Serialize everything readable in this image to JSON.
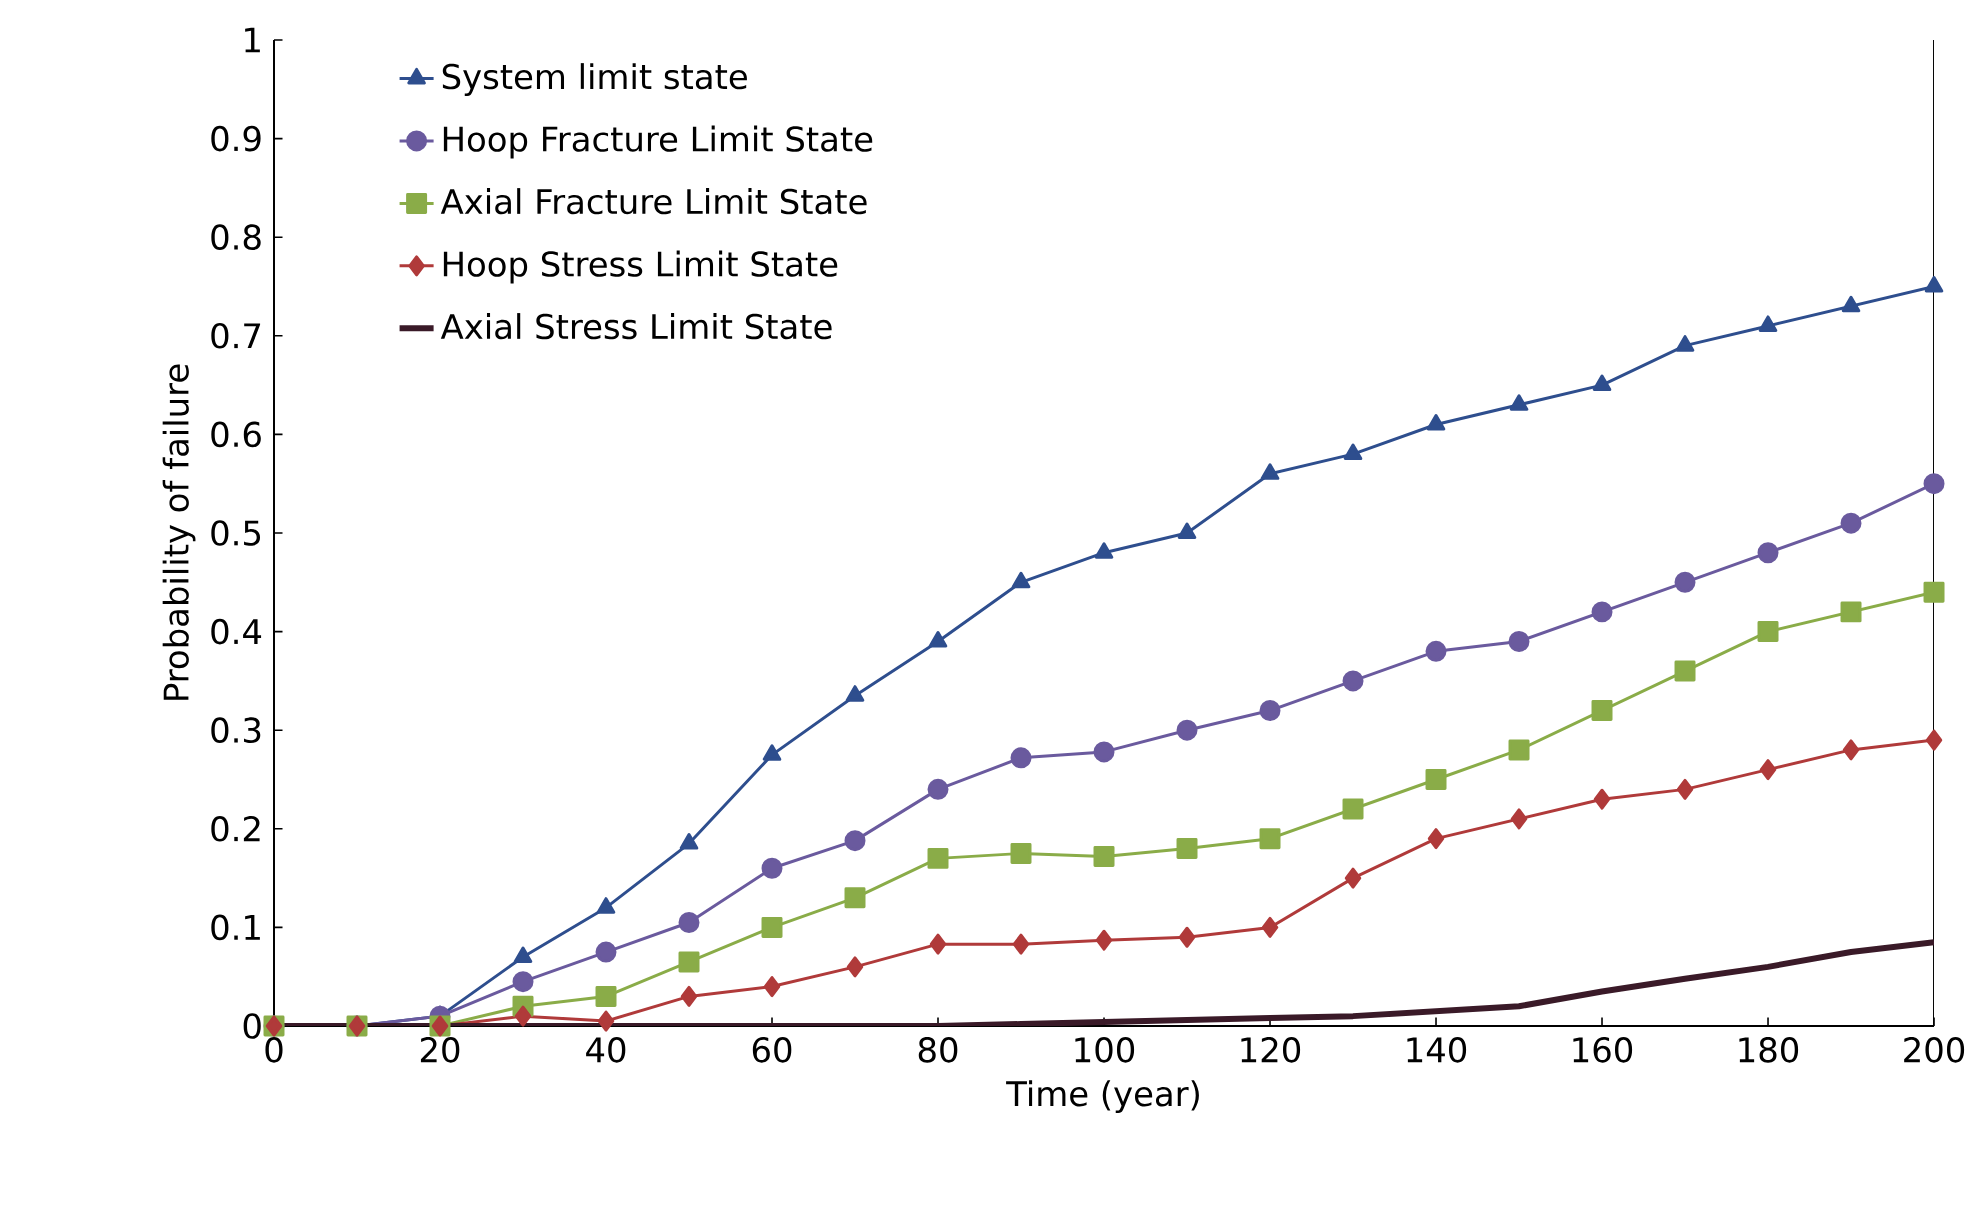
{
  "chart_data": {
    "type": "line",
    "xlabel": "Time (year)",
    "ylabel": "Probability of failure",
    "x": [
      0,
      10,
      20,
      30,
      40,
      50,
      60,
      70,
      80,
      90,
      100,
      110,
      120,
      130,
      140,
      150,
      160,
      170,
      180,
      190,
      200
    ],
    "series": [
      {
        "name": "System limit state",
        "color": "#2e4e8e",
        "marker": "triangle",
        "values": [
          0,
          0,
          0.01,
          0.07,
          0.12,
          0.185,
          0.275,
          0.335,
          0.39,
          0.45,
          0.48,
          0.5,
          0.56,
          0.58,
          0.61,
          0.63,
          0.65,
          0.69,
          0.71,
          0.73,
          0.75
        ]
      },
      {
        "name": "Hoop Fracture Limit State",
        "color": "#6a5a9e",
        "marker": "circle",
        "values": [
          0,
          0,
          0.01,
          0.045,
          0.075,
          0.105,
          0.16,
          0.188,
          0.24,
          0.272,
          0.278,
          0.3,
          0.32,
          0.35,
          0.38,
          0.39,
          0.42,
          0.45,
          0.48,
          0.51,
          0.55
        ]
      },
      {
        "name": "Axial Fracture Limit State",
        "color": "#8aac48",
        "marker": "square",
        "values": [
          0,
          0,
          0,
          0.02,
          0.03,
          0.065,
          0.1,
          0.13,
          0.17,
          0.175,
          0.172,
          0.18,
          0.19,
          0.22,
          0.25,
          0.28,
          0.32,
          0.36,
          0.4,
          0.42,
          0.44
        ]
      },
      {
        "name": "Hoop Stress Limit State",
        "color": "#b03a3a",
        "marker": "diamond",
        "values": [
          0,
          0,
          0,
          0.01,
          0.005,
          0.03,
          0.04,
          0.06,
          0.083,
          0.083,
          0.087,
          0.09,
          0.1,
          0.15,
          0.19,
          0.21,
          0.23,
          0.24,
          0.26,
          0.28,
          0.29
        ]
      },
      {
        "name": "Axial Stress Limit State",
        "color": "#3a1a28",
        "marker": "none",
        "values": [
          0,
          0,
          0,
          0,
          0,
          0,
          0,
          0,
          0,
          0.002,
          0.004,
          0.006,
          0.008,
          0.01,
          0.015,
          0.02,
          0.035,
          0.048,
          0.06,
          0.075,
          0.085
        ]
      }
    ],
    "xlim": [
      0,
      200
    ],
    "xticks": [
      0,
      20,
      40,
      60,
      80,
      100,
      120,
      140,
      160,
      180,
      200
    ],
    "ylim": [
      0,
      1
    ],
    "yticks": [
      0,
      0.1,
      0.2,
      0.3,
      0.4,
      0.5,
      0.6,
      0.7,
      0.8,
      0.9,
      1
    ],
    "grid": false,
    "legend": "top left",
    "line_style": "solid"
  }
}
